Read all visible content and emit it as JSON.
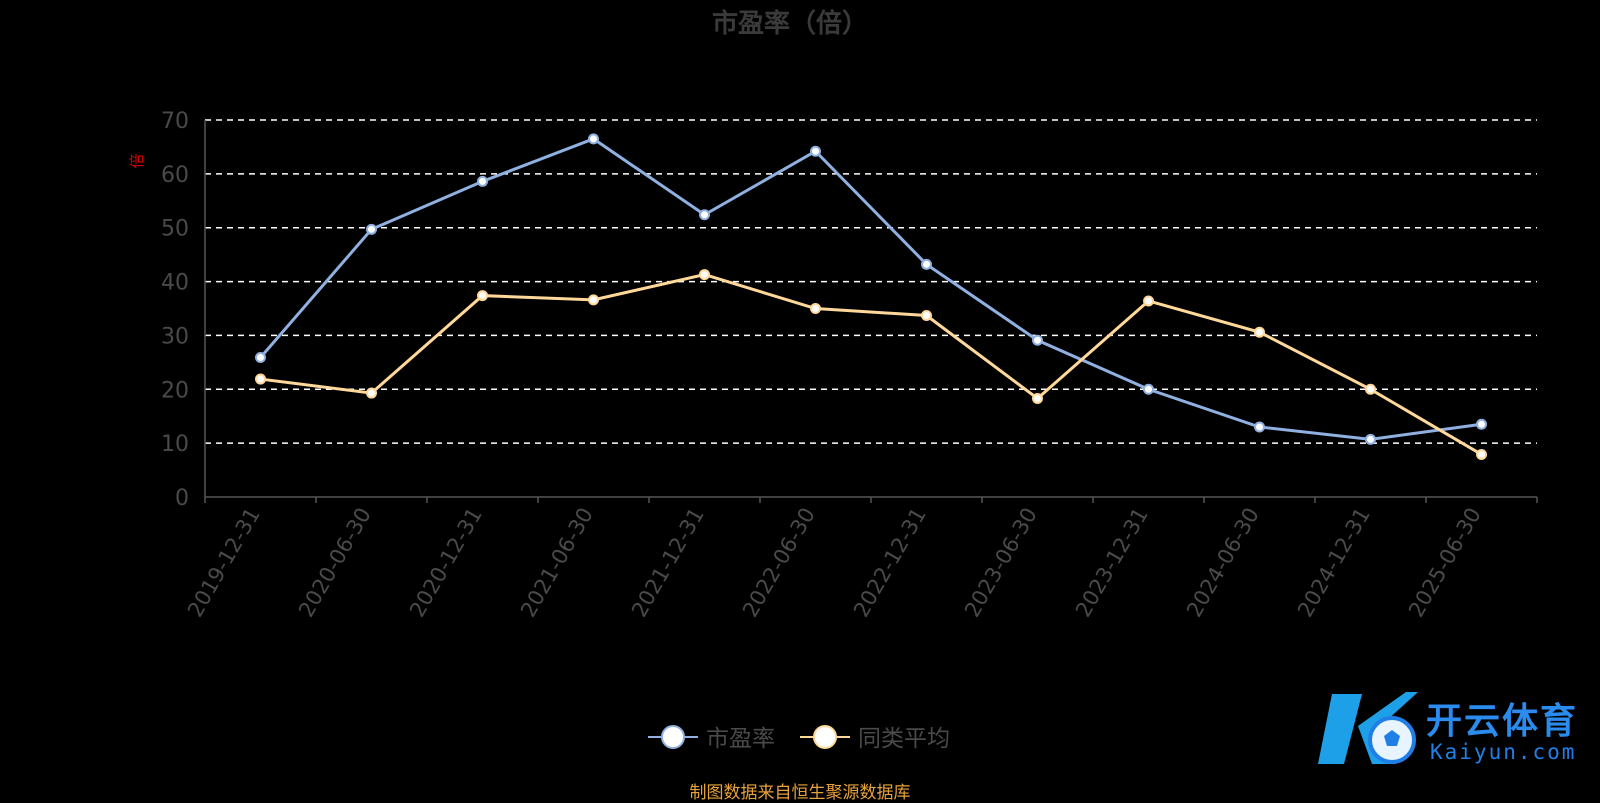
{
  "chart_data": {
    "type": "line",
    "title": "市盈率（倍）",
    "ylabel": "倍",
    "ylim": [
      0,
      70
    ],
    "yticks": [
      0,
      10,
      20,
      30,
      40,
      50,
      60,
      70
    ],
    "grid": true,
    "legend_position": "bottom",
    "categories": [
      "2019-12-31",
      "2020-06-30",
      "2020-12-31",
      "2021-06-30",
      "2021-12-31",
      "2022-06-30",
      "2022-12-31",
      "2023-06-30",
      "2023-12-31",
      "2024-06-30",
      "2024-12-31",
      "2025-06-30"
    ],
    "series": [
      {
        "name": "市盈率",
        "color": "#8fb0e0",
        "values": [
          25.9,
          49.7,
          58.6,
          66.5,
          52.4,
          64.2,
          43.2,
          29.1,
          20.0,
          13.0,
          10.7,
          13.5
        ]
      },
      {
        "name": "同类平均",
        "color": "#ffd89a",
        "values": [
          21.9,
          19.3,
          37.4,
          36.6,
          41.3,
          35.0,
          33.7,
          18.3,
          36.4,
          30.6,
          20.0,
          7.9
        ]
      }
    ]
  },
  "source_note": "制图数据来自恒生聚源数据库",
  "watermark": {
    "text": "开云体育",
    "subtext": "Kaiyun.com"
  }
}
